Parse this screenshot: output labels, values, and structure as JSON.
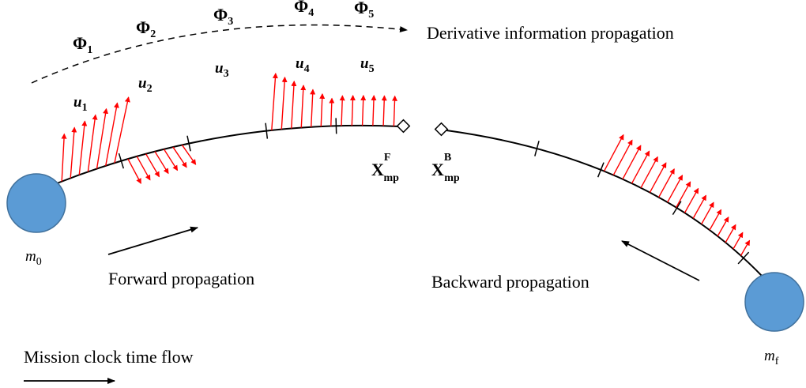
{
  "labels": {
    "derivative_flow": "Derivative information propagation",
    "forward": "Forward propagation",
    "backward": "Backward propagation",
    "mission_clock": "Mission clock time flow",
    "m0_base": "m",
    "m0_sub": "0",
    "mf_base": "m",
    "mf_sub": "f",
    "xmp_base": "X",
    "xmp_sub": "mp",
    "xmp_forward_sup": "F",
    "xmp_backward_sup": "B"
  },
  "phi_labels": [
    {
      "base": "Φ",
      "sub": "1"
    },
    {
      "base": "Φ",
      "sub": "2"
    },
    {
      "base": "Φ",
      "sub": "3"
    },
    {
      "base": "Φ",
      "sub": "4"
    },
    {
      "base": "Φ",
      "sub": "5"
    }
  ],
  "u_labels": [
    {
      "base": "u",
      "sub": "1"
    },
    {
      "base": "u",
      "sub": "2"
    },
    {
      "base": "u",
      "sub": "3"
    },
    {
      "base": "u",
      "sub": "4"
    },
    {
      "base": "u",
      "sub": "5"
    }
  ],
  "colors": {
    "body": "#5b9bd5",
    "body_stroke": "#41719c",
    "thrust_arrow": "#ff0000",
    "line": "#000000"
  }
}
